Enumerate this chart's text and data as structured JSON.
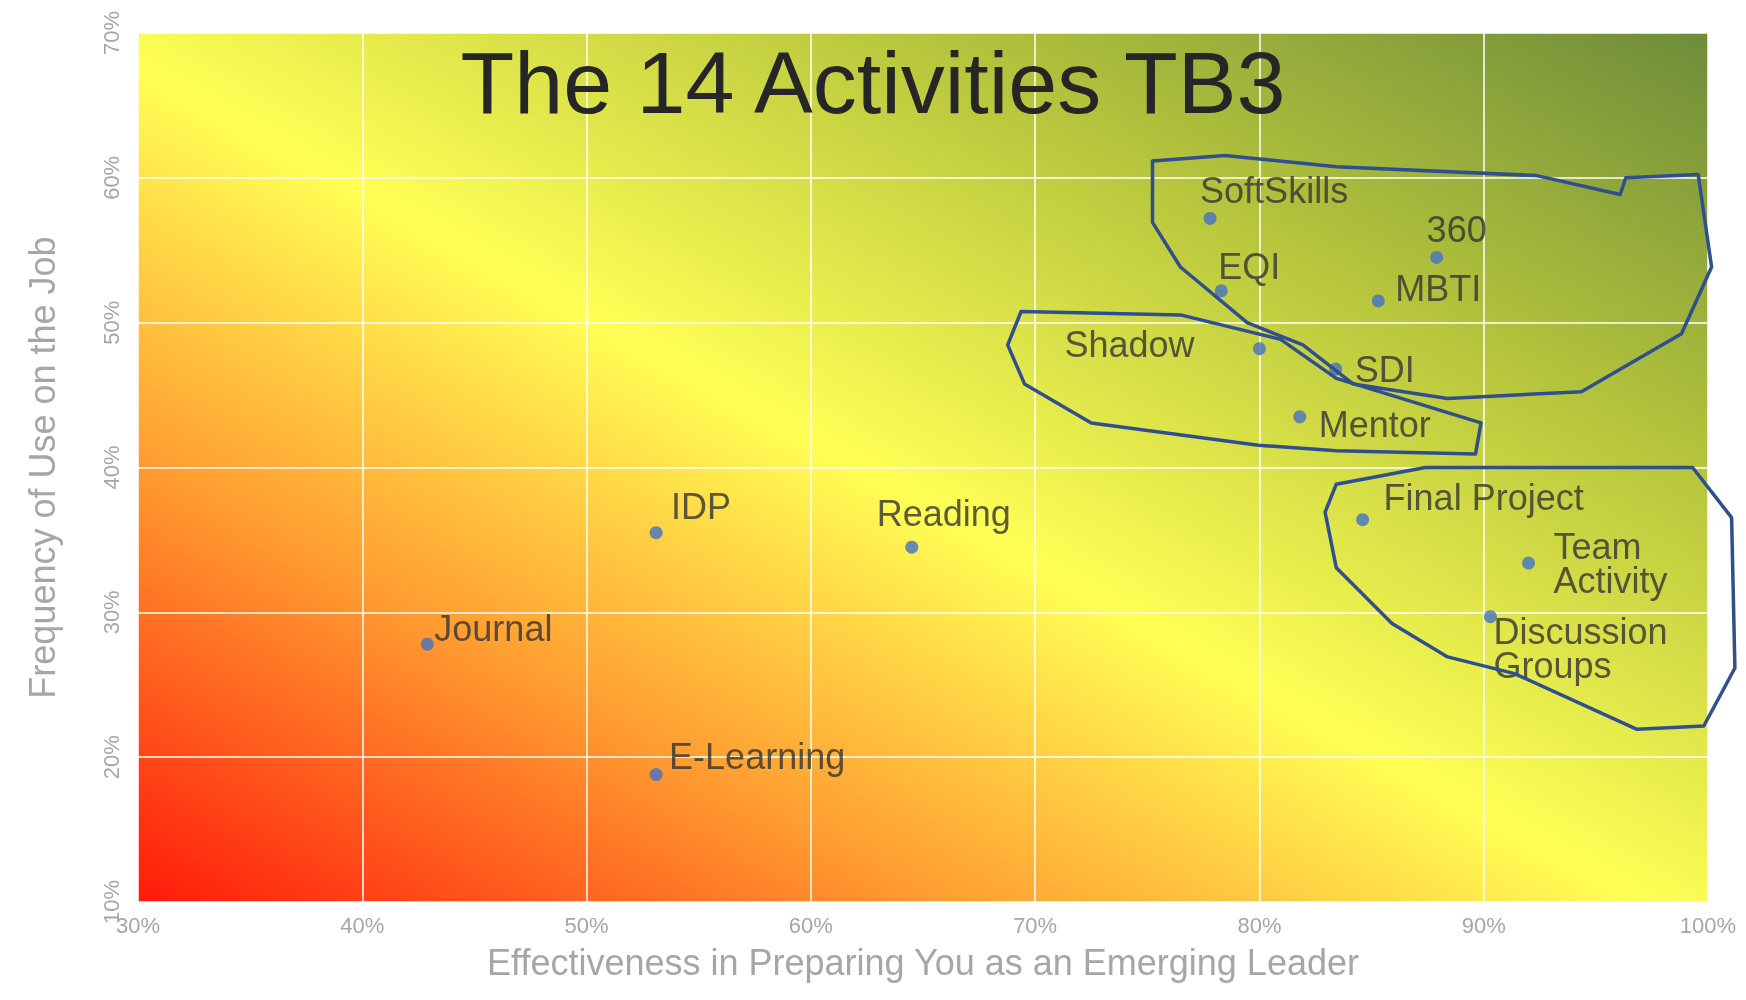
{
  "chart_data": {
    "type": "scatter",
    "title": "The 14 Activities TB3",
    "xlabel": "Effectiveness in Preparing You as an Emerging Leader",
    "ylabel": "Frequency of Use on the Job",
    "x": [
      77.8,
      87.9,
      78.3,
      85.3,
      80.0,
      83.4,
      81.8,
      84.6,
      92.0,
      90.3,
      53.1,
      64.5,
      42.9,
      53.1
    ],
    "values": [
      57.2,
      54.5,
      52.2,
      51.5,
      48.2,
      46.8,
      43.5,
      36.4,
      33.4,
      29.7,
      35.5,
      34.5,
      27.8,
      18.8
    ],
    "color": "#4472c4",
    "marker": "circle",
    "grid": true,
    "xlim": [
      30,
      100
    ],
    "ylim": [
      10,
      70
    ],
    "xticks": [
      {
        "value": 30,
        "label": "30%"
      },
      {
        "value": 40,
        "label": "40%"
      },
      {
        "value": 50,
        "label": "50%"
      },
      {
        "value": 60,
        "label": "60%"
      },
      {
        "value": 70,
        "label": "70%"
      },
      {
        "value": 80,
        "label": "80%"
      },
      {
        "value": 90,
        "label": "90%"
      },
      {
        "value": 100,
        "label": "100%"
      }
    ],
    "yticks": [
      {
        "value": 10,
        "label": "10%"
      },
      {
        "value": 20,
        "label": "20%"
      },
      {
        "value": 30,
        "label": "30%"
      },
      {
        "value": 40,
        "label": "40%"
      },
      {
        "value": 50,
        "label": "50%"
      },
      {
        "value": 60,
        "label": "60%"
      },
      {
        "value": 70,
        "label": "70%"
      }
    ],
    "annotations": [
      {
        "text": "SoftSkills",
        "x": 77.8,
        "y": 57.2
      },
      {
        "text": "360",
        "x": 87.9,
        "y": 54.5
      },
      {
        "text": "EQI",
        "x": 78.3,
        "y": 52.2
      },
      {
        "text": "MBTI",
        "x": 85.3,
        "y": 51.5
      },
      {
        "text": "Shadow",
        "x": 80.0,
        "y": 48.2
      },
      {
        "text": "SDI",
        "x": 83.4,
        "y": 46.8
      },
      {
        "text": "Mentor",
        "x": 81.8,
        "y": 43.5
      },
      {
        "text": "Final Project",
        "x": 84.6,
        "y": 36.4
      },
      {
        "text": "Team Activity",
        "x": 92.0,
        "y": 33.4
      },
      {
        "text": "Discussion Groups",
        "x": 90.3,
        "y": 29.7
      },
      {
        "text": "IDP",
        "x": 53.1,
        "y": 35.5
      },
      {
        "text": "Reading",
        "x": 64.5,
        "y": 34.5
      },
      {
        "text": "Journal",
        "x": 42.9,
        "y": 27.8
      },
      {
        "text": "E-Learning",
        "x": 53.1,
        "y": 18.8
      }
    ]
  }
}
